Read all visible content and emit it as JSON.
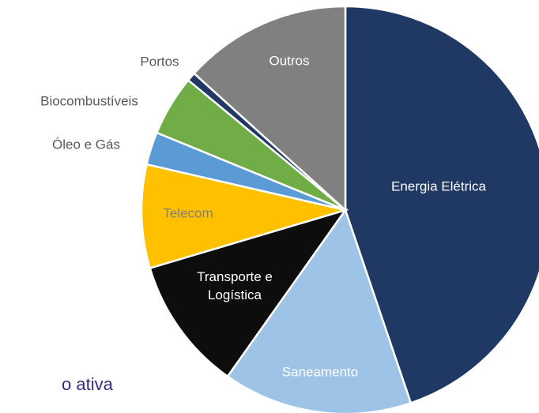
{
  "chart_data": {
    "type": "pie",
    "caption": "o ativa",
    "categories": [
      "Energia Elétrica",
      "Saneamento",
      "Transporte e Logística",
      "Telecom",
      "Óleo e Gás",
      "Biocombustíveis",
      "Portos",
      "Outros"
    ],
    "values": [
      44.8,
      15,
      10.6,
      8.2,
      2.6,
      4.8,
      0.7,
      13.3
    ],
    "colors": [
      "#1f3864",
      "#9dc3e6",
      "#0d0d0d",
      "#ffc000",
      "#5b9bd5",
      "#70ad47",
      "#203864",
      "#808080"
    ]
  }
}
